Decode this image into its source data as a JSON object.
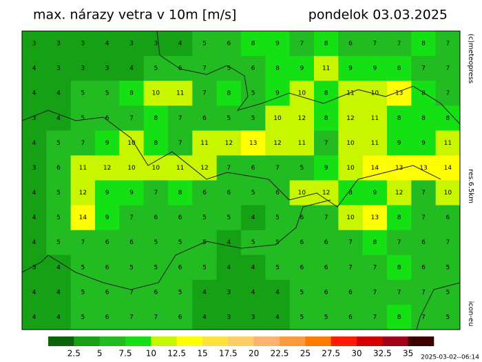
{
  "header": {
    "title": "max. nárazy vetra v 10m [m/s]",
    "date": "pondelok 03.03.2025"
  },
  "side_labels": [
    "(c)meteopress",
    "res.6.5km",
    "icon-eu"
  ],
  "legend": {
    "ticks": [
      2.5,
      5,
      7.5,
      10,
      12.5,
      15,
      17.5,
      20,
      22.5,
      25,
      27.5,
      30,
      32.5,
      35
    ],
    "colors": [
      "#0b640b",
      "#15a015",
      "#22bb22",
      "#14e014",
      "#c8f500",
      "#ffff00",
      "#ffe23c",
      "#ffcc66",
      "#ffb26e",
      "#ff9a3c",
      "#ff7a00",
      "#ff1a00",
      "#d40000",
      "#a00018",
      "#3c0000"
    ]
  },
  "timestamp": "2025-03-02--06:14",
  "grid": {
    "rows": [
      [
        3,
        3,
        3,
        4,
        3,
        3,
        4,
        5,
        6,
        8,
        9,
        7,
        8,
        6,
        7,
        7,
        8,
        7
      ],
      [
        4,
        3,
        3,
        3,
        4,
        5,
        6,
        7,
        5,
        6,
        8,
        9,
        11,
        9,
        9,
        8,
        7,
        7
      ],
      [
        4,
        4,
        5,
        5,
        8,
        10,
        11,
        7,
        8,
        5,
        9,
        10,
        8,
        11,
        10,
        13,
        8,
        7
      ],
      [
        3,
        4,
        5,
        6,
        7,
        8,
        7,
        6,
        5,
        5,
        10,
        12,
        8,
        12,
        11,
        8,
        8,
        8
      ],
      [
        4,
        5,
        7,
        9,
        10,
        8,
        7,
        11,
        12,
        13,
        12,
        11,
        7,
        10,
        11,
        9,
        9,
        11
      ],
      [
        3,
        6,
        11,
        12,
        10,
        10,
        11,
        12,
        7,
        6,
        7,
        5,
        9,
        10,
        14,
        13,
        13,
        14
      ],
      [
        4,
        5,
        12,
        9,
        9,
        7,
        8,
        6,
        6,
        5,
        6,
        10,
        12,
        8,
        9,
        12,
        7,
        10
      ],
      [
        4,
        5,
        14,
        9,
        7,
        6,
        6,
        5,
        5,
        4,
        5,
        6,
        7,
        10,
        13,
        8,
        7,
        6
      ],
      [
        4,
        5,
        7,
        6,
        6,
        5,
        5,
        5,
        4,
        5,
        5,
        6,
        6,
        7,
        8,
        7,
        6,
        7
      ],
      [
        3,
        4,
        5,
        6,
        5,
        5,
        6,
        5,
        4,
        4,
        5,
        6,
        6,
        7,
        7,
        8,
        6,
        5
      ],
      [
        4,
        4,
        5,
        6,
        7,
        6,
        5,
        4,
        3,
        4,
        4,
        5,
        6,
        6,
        7,
        7,
        7,
        5
      ],
      [
        4,
        4,
        5,
        6,
        7,
        7,
        6,
        4,
        3,
        3,
        4,
        5,
        5,
        6,
        7,
        8,
        7,
        5
      ]
    ]
  }
}
